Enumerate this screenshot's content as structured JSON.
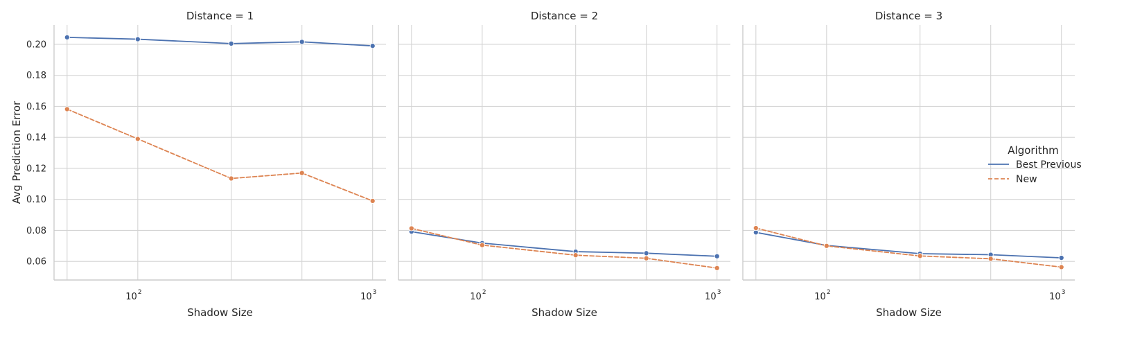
{
  "chart_data": {
    "type": "line",
    "xscale": "log",
    "grid": true,
    "ylabel": "Avg Prediction Error",
    "xlabel": "Shadow Size",
    "ylim": [
      0.048,
      0.2125
    ],
    "xlim": [
      44,
      1140
    ],
    "xticks": [
      {
        "value": 100,
        "base": "10",
        "exp": "2"
      },
      {
        "value": 1000,
        "base": "10",
        "exp": "3"
      }
    ],
    "yticks": [
      {
        "value": 0.06,
        "label": "0.06"
      },
      {
        "value": 0.08,
        "label": "0.08"
      },
      {
        "value": 0.1,
        "label": "0.10"
      },
      {
        "value": 0.12,
        "label": "0.12"
      },
      {
        "value": 0.14,
        "label": "0.14"
      },
      {
        "value": 0.16,
        "label": "0.16"
      },
      {
        "value": 0.18,
        "label": "0.18"
      },
      {
        "value": 0.2,
        "label": "0.20"
      }
    ],
    "x": [
      50,
      100,
      250,
      500,
      1000
    ],
    "legend": {
      "title": "Algorithm",
      "placement": "right",
      "entries": [
        {
          "name": "Best Previous",
          "color": "#4c72b0",
          "dash": "solid"
        },
        {
          "name": "New",
          "color": "#dd8452",
          "dash": "dashed"
        }
      ]
    },
    "panels": [
      {
        "title": "Distance = 1",
        "series": [
          {
            "name": "Best Previous",
            "values": [
              0.2045,
              0.2033,
              0.2005,
              0.2016,
              0.199
            ]
          },
          {
            "name": "New",
            "values": [
              0.1582,
              0.139,
              0.1135,
              0.117,
              0.099
            ]
          }
        ]
      },
      {
        "title": "Distance = 2",
        "series": [
          {
            "name": "Best Previous",
            "values": [
              0.0792,
              0.0718,
              0.0663,
              0.0653,
              0.0633
            ]
          },
          {
            "name": "New",
            "values": [
              0.0813,
              0.0705,
              0.064,
              0.062,
              0.0557
            ]
          }
        ]
      },
      {
        "title": "Distance = 3",
        "series": [
          {
            "name": "Best Previous",
            "values": [
              0.0787,
              0.0703,
              0.065,
              0.0643,
              0.0623
            ]
          },
          {
            "name": "New",
            "values": [
              0.0815,
              0.07,
              0.0635,
              0.0617,
              0.0563
            ]
          }
        ]
      }
    ]
  }
}
